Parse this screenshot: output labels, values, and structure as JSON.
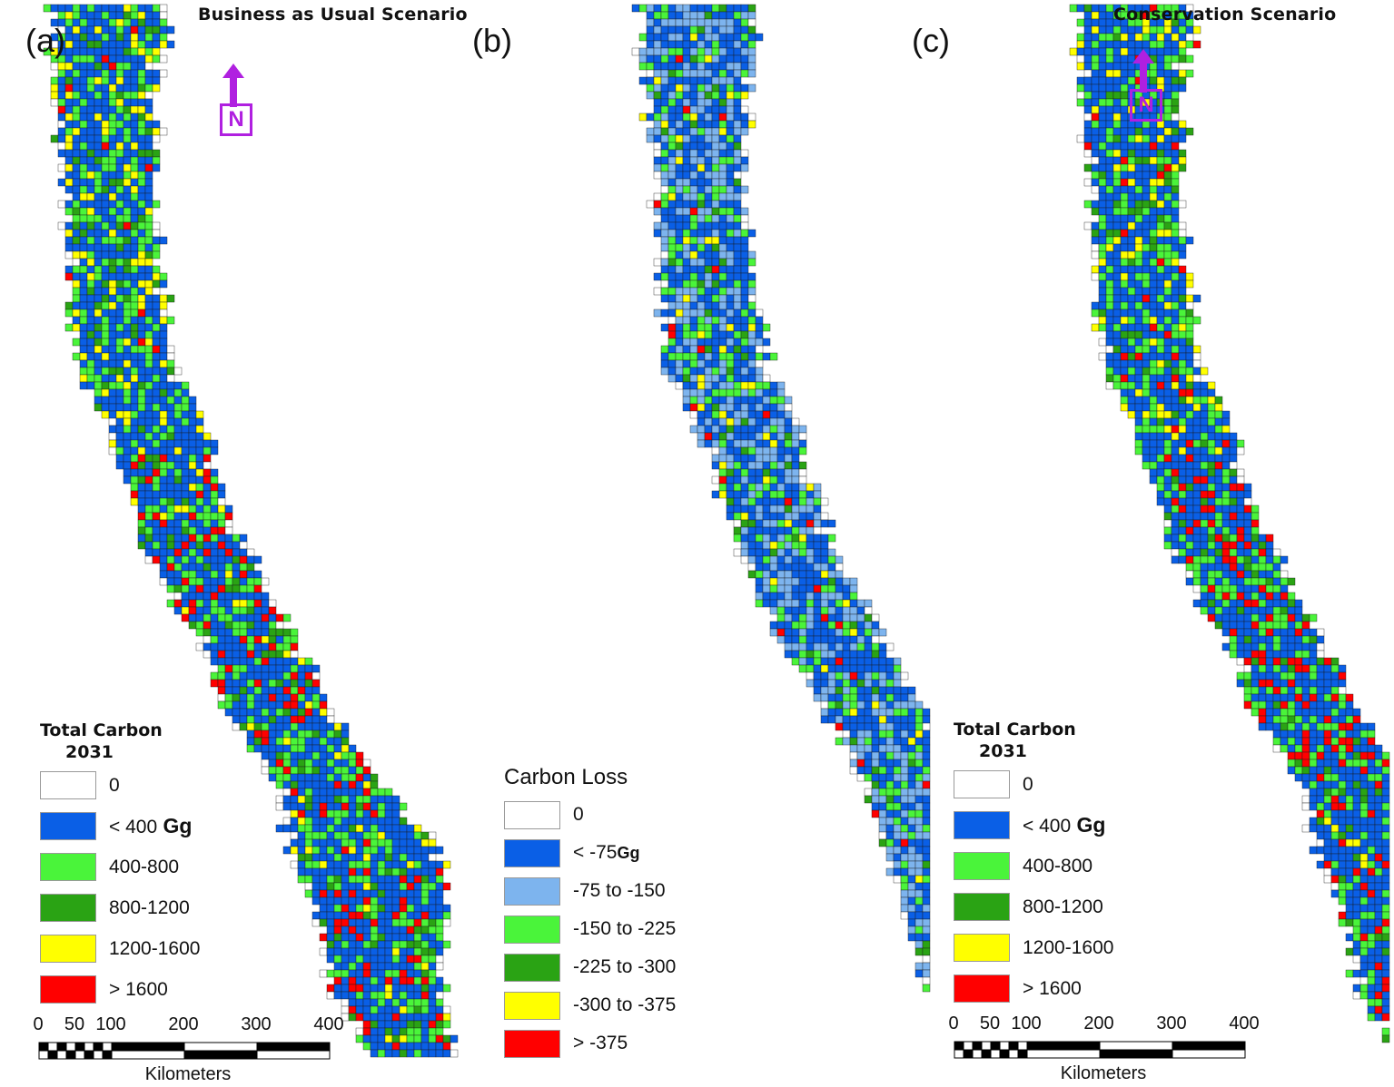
{
  "colors": {
    "zero": "#ffffff",
    "blue": "#0a5fe6",
    "lightblue": "#7db4ee",
    "lightgreen": "#4af43a",
    "darkgreen": "#2aa314",
    "yellow": "#ffff00",
    "red": "#ff0000",
    "north": "#b020e0"
  },
  "panels": [
    {
      "label": "(a)",
      "title": "Business as Usual Scenario",
      "legend_title": "Total Carbon",
      "legend_subtitle": "2031",
      "legend_items": [
        {
          "label": "0",
          "color": "#ffffff"
        },
        {
          "label": "< 400",
          "unit": "Gg",
          "color": "#0a5fe6"
        },
        {
          "label": "400-800",
          "color": "#4af43a"
        },
        {
          "label": "800-1200",
          "color": "#2aa314"
        },
        {
          "label": "1200-1600",
          "color": "#ffff00"
        },
        {
          "label": "> 1600",
          "color": "#ff0000"
        }
      ]
    },
    {
      "label": "(b)",
      "title": "",
      "legend_title": "Carbon Loss",
      "legend_items": [
        {
          "label": "0",
          "color": "#ffffff"
        },
        {
          "label": "< -75",
          "unit": "Gg",
          "color": "#0a5fe6"
        },
        {
          "label": "-75  to -150",
          "color": "#7db4ee"
        },
        {
          "label": "-150  to -225",
          "color": "#4af43a"
        },
        {
          "label": "-225  to -300",
          "color": "#2aa314"
        },
        {
          "label": "-300 to -375",
          "color": "#ffff00"
        },
        {
          "label": "> -375",
          "color": "#ff0000"
        }
      ]
    },
    {
      "label": "(c)",
      "title": "Conservation Scenario",
      "legend_title": "Total Carbon",
      "legend_subtitle": "2031",
      "legend_items": [
        {
          "label": "0",
          "color": "#ffffff"
        },
        {
          "label": "< 400",
          "unit": "Gg",
          "color": "#0a5fe6"
        },
        {
          "label": "400-800",
          "color": "#4af43a"
        },
        {
          "label": "800-1200",
          "color": "#2aa314"
        },
        {
          "label": "1200-1600",
          "color": "#ffff00"
        },
        {
          "label": "> 1600",
          "color": "#ff0000"
        }
      ]
    }
  ],
  "north_arrow": {
    "letter": "N"
  },
  "scalebar": {
    "ticks": [
      "0",
      "50",
      "100",
      "200",
      "300",
      "400"
    ],
    "unit": "Kilometers"
  }
}
